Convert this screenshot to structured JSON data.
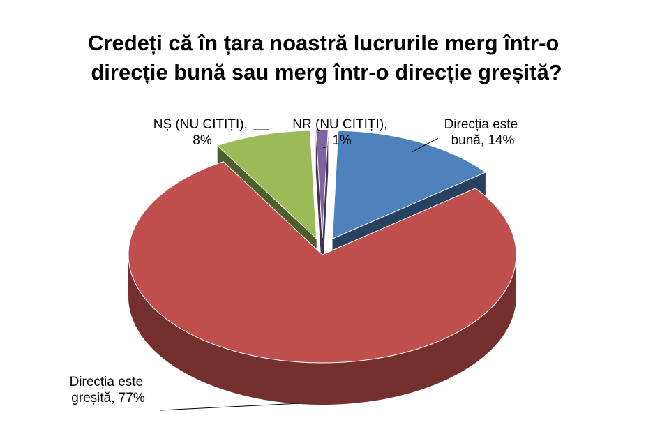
{
  "chart_data": {
    "type": "pie",
    "title": "Credeți că în țara noastră lucrurile merg într-o direcție bună sau merg într-o direcție greșită?",
    "values": [
      14,
      77,
      8,
      1
    ],
    "value_labels": [
      "Direcția este bună, 14%",
      "Direcția este greșită, 77%",
      "NȘ (NU CITIȚI), 8%",
      "NR (NU CITIȚI), 1%"
    ],
    "colors": [
      "#4f81bd",
      "#c0504d",
      "#9bbb59",
      "#8064a2"
    ]
  }
}
